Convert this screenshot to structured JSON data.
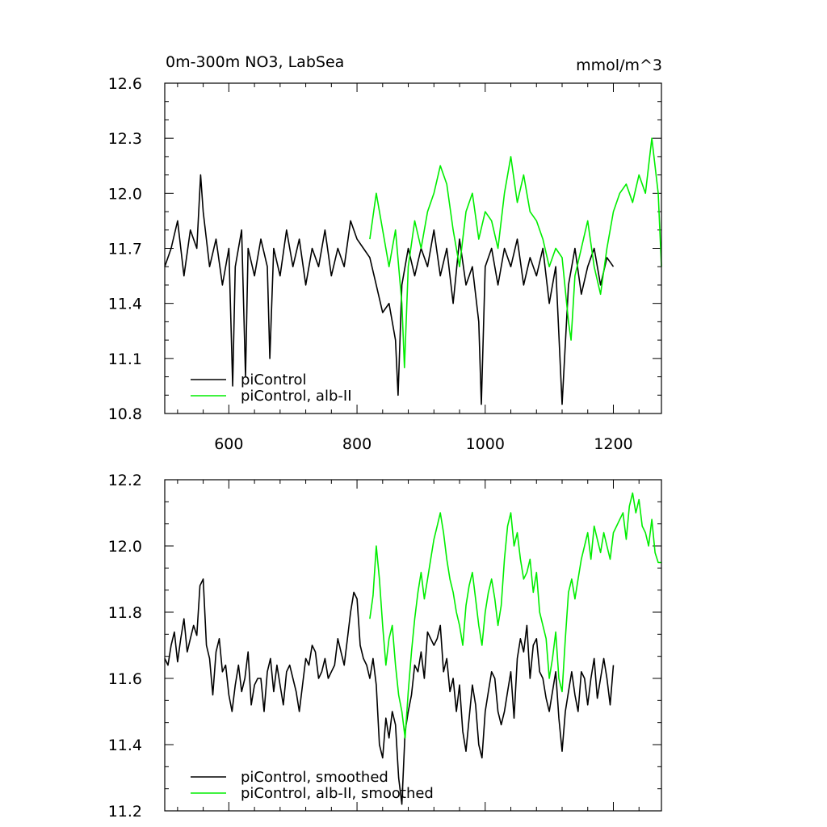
{
  "chart_data": [
    {
      "type": "line",
      "title": "0m-300m NO3, LabSea",
      "units": "mmol/m^3",
      "xlim": [
        500,
        1275
      ],
      "ylim": [
        10.8,
        12.6
      ],
      "xticks": [
        600,
        800,
        1000,
        1200
      ],
      "xtick_labels": [
        "600",
        "800",
        "1000",
        "1200"
      ],
      "yticks": [
        10.8,
        11.1,
        11.4,
        11.7,
        12.0,
        12.3,
        12.6
      ],
      "ytick_labels": [
        "10.8",
        "11.1",
        "11.4",
        "11.7",
        "12.0",
        "12.3",
        "12.6"
      ],
      "legend_position": "bottom-left",
      "series": [
        {
          "name": "piControl",
          "color": "#000000",
          "x": [
            500,
            510,
            520,
            530,
            540,
            550,
            556,
            560,
            570,
            580,
            590,
            600,
            606,
            610,
            620,
            626,
            630,
            640,
            650,
            660,
            664,
            670,
            680,
            690,
            700,
            710,
            720,
            730,
            740,
            750,
            760,
            770,
            780,
            790,
            800,
            810,
            820,
            830,
            840,
            850,
            860,
            864,
            870,
            880,
            890,
            900,
            910,
            920,
            930,
            940,
            950,
            960,
            970,
            980,
            990,
            994,
            1000,
            1010,
            1020,
            1030,
            1040,
            1050,
            1060,
            1070,
            1080,
            1090,
            1100,
            1110,
            1120,
            1130,
            1140,
            1150,
            1160,
            1170,
            1180,
            1190,
            1200
          ],
          "values": [
            11.6,
            11.7,
            11.85,
            11.55,
            11.8,
            11.7,
            12.1,
            11.9,
            11.6,
            11.75,
            11.5,
            11.7,
            10.95,
            11.6,
            11.8,
            11.0,
            11.7,
            11.55,
            11.75,
            11.6,
            11.1,
            11.7,
            11.55,
            11.8,
            11.6,
            11.75,
            11.5,
            11.7,
            11.6,
            11.8,
            11.55,
            11.7,
            11.6,
            11.85,
            11.75,
            11.7,
            11.65,
            11.5,
            11.35,
            11.4,
            11.2,
            10.9,
            11.5,
            11.7,
            11.55,
            11.7,
            11.6,
            11.8,
            11.55,
            11.7,
            11.4,
            11.75,
            11.5,
            11.6,
            11.3,
            10.85,
            11.6,
            11.7,
            11.5,
            11.7,
            11.6,
            11.75,
            11.5,
            11.65,
            11.55,
            11.7,
            11.4,
            11.6,
            10.85,
            11.5,
            11.7,
            11.45,
            11.6,
            11.7,
            11.5,
            11.65,
            11.6
          ]
        },
        {
          "name": "piControl, alb-II",
          "color": "#00ee00",
          "x": [
            820,
            830,
            840,
            850,
            860,
            870,
            874,
            880,
            890,
            900,
            910,
            920,
            930,
            940,
            950,
            960,
            970,
            980,
            990,
            1000,
            1010,
            1020,
            1030,
            1040,
            1050,
            1060,
            1070,
            1080,
            1090,
            1100,
            1110,
            1120,
            1130,
            1134,
            1140,
            1150,
            1160,
            1170,
            1180,
            1190,
            1200,
            1210,
            1220,
            1230,
            1240,
            1250,
            1260,
            1270,
            1275
          ],
          "values": [
            11.75,
            12.0,
            11.8,
            11.6,
            11.8,
            11.4,
            11.05,
            11.6,
            11.85,
            11.7,
            11.9,
            12.0,
            12.15,
            12.05,
            11.8,
            11.6,
            11.9,
            12.0,
            11.75,
            11.9,
            11.85,
            11.7,
            12.0,
            12.2,
            11.95,
            12.1,
            11.9,
            11.85,
            11.75,
            11.6,
            11.7,
            11.65,
            11.3,
            11.2,
            11.55,
            11.7,
            11.85,
            11.6,
            11.45,
            11.7,
            11.9,
            12.0,
            12.05,
            11.95,
            12.1,
            12.0,
            12.3,
            12.0,
            11.6
          ]
        }
      ]
    },
    {
      "type": "line",
      "xlim": [
        500,
        1275
      ],
      "ylim": [
        11.2,
        12.2
      ],
      "xticks": [
        600,
        800,
        1000,
        1200
      ],
      "yticks": [
        11.2,
        11.4,
        11.6,
        11.8,
        12.0,
        12.2
      ],
      "ytick_labels": [
        "11.2",
        "11.4",
        "11.6",
        "11.8",
        "12.0",
        "12.2"
      ],
      "legend_position": "bottom-left",
      "series": [
        {
          "name": "piControl, smoothed",
          "color": "#000000",
          "x": [
            500,
            505,
            510,
            515,
            520,
            525,
            530,
            535,
            540,
            545,
            550,
            555,
            560,
            565,
            570,
            575,
            580,
            585,
            590,
            595,
            600,
            605,
            610,
            615,
            620,
            625,
            630,
            635,
            640,
            645,
            650,
            655,
            660,
            665,
            670,
            675,
            680,
            685,
            690,
            695,
            700,
            705,
            710,
            715,
            720,
            725,
            730,
            735,
            740,
            745,
            750,
            755,
            760,
            765,
            770,
            775,
            780,
            785,
            790,
            795,
            800,
            805,
            810,
            815,
            820,
            825,
            830,
            835,
            840,
            845,
            850,
            855,
            860,
            865,
            870,
            875,
            880,
            885,
            890,
            895,
            900,
            905,
            910,
            915,
            920,
            925,
            930,
            935,
            940,
            945,
            950,
            955,
            960,
            965,
            970,
            975,
            980,
            985,
            990,
            995,
            1000,
            1005,
            1010,
            1015,
            1020,
            1025,
            1030,
            1035,
            1040,
            1045,
            1050,
            1055,
            1060,
            1065,
            1070,
            1075,
            1080,
            1085,
            1090,
            1095,
            1100,
            1105,
            1110,
            1115,
            1120,
            1125,
            1130,
            1135,
            1140,
            1145,
            1150,
            1155,
            1160,
            1165,
            1170,
            1175,
            1180,
            1185,
            1190,
            1195,
            1200
          ],
          "values": [
            11.66,
            11.64,
            11.7,
            11.74,
            11.65,
            11.72,
            11.78,
            11.68,
            11.72,
            11.76,
            11.73,
            11.88,
            11.9,
            11.7,
            11.66,
            11.55,
            11.68,
            11.72,
            11.62,
            11.64,
            11.55,
            11.5,
            11.58,
            11.64,
            11.56,
            11.6,
            11.68,
            11.52,
            11.58,
            11.6,
            11.6,
            11.5,
            11.62,
            11.66,
            11.56,
            11.64,
            11.58,
            11.52,
            11.62,
            11.64,
            11.6,
            11.56,
            11.5,
            11.58,
            11.66,
            11.64,
            11.7,
            11.68,
            11.6,
            11.62,
            11.66,
            11.6,
            11.62,
            11.64,
            11.72,
            11.68,
            11.64,
            11.72,
            11.8,
            11.86,
            11.84,
            11.7,
            11.66,
            11.64,
            11.6,
            11.66,
            11.58,
            11.4,
            11.36,
            11.48,
            11.42,
            11.5,
            11.46,
            11.3,
            11.22,
            11.44,
            11.5,
            11.55,
            11.64,
            11.62,
            11.68,
            11.6,
            11.74,
            11.72,
            11.7,
            11.72,
            11.76,
            11.62,
            11.66,
            11.56,
            11.6,
            11.5,
            11.58,
            11.44,
            11.38,
            11.48,
            11.58,
            11.52,
            11.4,
            11.36,
            11.5,
            11.56,
            11.62,
            11.6,
            11.5,
            11.46,
            11.5,
            11.56,
            11.62,
            11.48,
            11.66,
            11.72,
            11.68,
            11.76,
            11.6,
            11.7,
            11.72,
            11.62,
            11.6,
            11.54,
            11.5,
            11.56,
            11.62,
            11.48,
            11.38,
            11.5,
            11.56,
            11.62,
            11.55,
            11.5,
            11.62,
            11.6,
            11.52,
            11.6,
            11.66,
            11.54,
            11.6,
            11.66,
            11.6,
            11.52,
            11.64
          ]
        },
        {
          "name": "piControl, alb-II, smoothed",
          "color": "#00ee00",
          "x": [
            820,
            825,
            830,
            835,
            840,
            845,
            850,
            855,
            860,
            865,
            870,
            875,
            880,
            885,
            890,
            895,
            900,
            905,
            910,
            915,
            920,
            925,
            930,
            935,
            940,
            945,
            950,
            955,
            960,
            965,
            970,
            975,
            980,
            985,
            990,
            995,
            1000,
            1005,
            1010,
            1015,
            1020,
            1025,
            1030,
            1035,
            1040,
            1045,
            1050,
            1055,
            1060,
            1065,
            1070,
            1075,
            1080,
            1085,
            1090,
            1095,
            1100,
            1105,
            1110,
            1115,
            1120,
            1125,
            1130,
            1135,
            1140,
            1145,
            1150,
            1155,
            1160,
            1165,
            1170,
            1175,
            1180,
            1185,
            1190,
            1195,
            1200,
            1205,
            1210,
            1215,
            1220,
            1225,
            1230,
            1235,
            1240,
            1245,
            1250,
            1255,
            1260,
            1265,
            1270,
            1275
          ],
          "values": [
            11.78,
            11.85,
            12.0,
            11.9,
            11.76,
            11.64,
            11.72,
            11.76,
            11.64,
            11.55,
            11.5,
            11.42,
            11.56,
            11.68,
            11.78,
            11.86,
            11.92,
            11.84,
            11.9,
            11.96,
            12.02,
            12.06,
            12.1,
            12.04,
            11.96,
            11.9,
            11.86,
            11.8,
            11.76,
            11.7,
            11.82,
            11.88,
            11.92,
            11.84,
            11.76,
            11.7,
            11.8,
            11.86,
            11.9,
            11.84,
            11.76,
            11.82,
            11.96,
            12.06,
            12.1,
            12.0,
            12.04,
            11.96,
            11.9,
            11.92,
            11.96,
            11.86,
            11.92,
            11.8,
            11.76,
            11.72,
            11.6,
            11.66,
            11.74,
            11.6,
            11.56,
            11.72,
            11.86,
            11.9,
            11.84,
            11.9,
            11.96,
            12.0,
            12.04,
            11.96,
            12.06,
            12.02,
            11.98,
            12.04,
            12.0,
            11.96,
            12.04,
            12.06,
            12.08,
            12.1,
            12.02,
            12.12,
            12.16,
            12.1,
            12.14,
            12.06,
            12.04,
            12.0,
            12.08,
            11.98,
            11.95,
            11.95
          ]
        }
      ]
    }
  ]
}
